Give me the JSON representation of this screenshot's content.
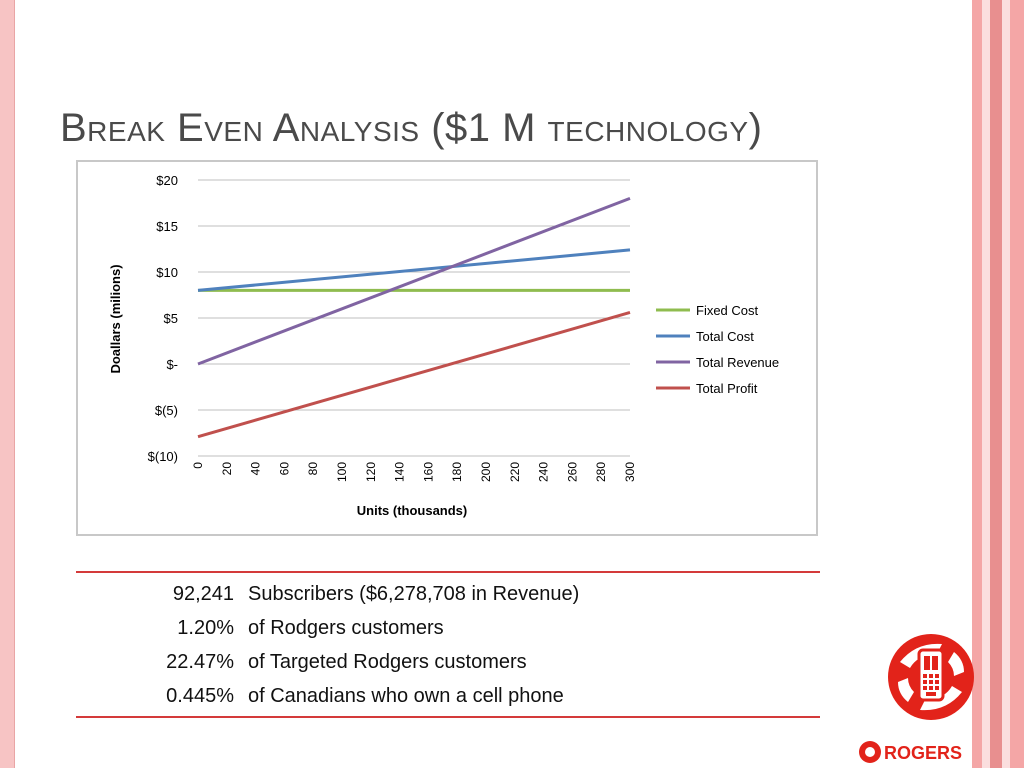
{
  "slide": {
    "title": "Break Even Analysis ($1 M technology)",
    "border_color": "#f7c4c4",
    "stripe_colors": [
      "#f4a6a6",
      "#fbdede",
      "#e88f8f",
      "#fbdede",
      "#f4a6a6"
    ]
  },
  "chart_data": {
    "type": "line",
    "xlabel": "Units (thousands)",
    "ylabel": "Doallars (milions)",
    "x": [
      0,
      20,
      40,
      60,
      80,
      100,
      120,
      140,
      160,
      180,
      200,
      220,
      240,
      260,
      280,
      300
    ],
    "x_tick_labels": [
      "0",
      "20",
      "40",
      "60",
      "80",
      "100",
      "120",
      "140",
      "160",
      "180",
      "200",
      "220",
      "240",
      "260",
      "280",
      "300"
    ],
    "ylim": [
      -10,
      20
    ],
    "y_ticks": [
      20,
      15,
      10,
      5,
      0,
      -5,
      -10
    ],
    "y_tick_labels": [
      "$20",
      "$15",
      "$10",
      "$5",
      "$-",
      "$(5)",
      "$(10)"
    ],
    "grid": "horizontal",
    "legend_position": "right",
    "series": [
      {
        "name": "Fixed Cost",
        "color": "#8fbc4f",
        "points": [
          [
            0,
            8
          ],
          [
            300,
            8
          ]
        ]
      },
      {
        "name": "Total Cost",
        "color": "#4f81bd",
        "points": [
          [
            0,
            8
          ],
          [
            300,
            12.4
          ]
        ]
      },
      {
        "name": "Total Revenue",
        "color": "#8064a2",
        "points": [
          [
            0,
            0
          ],
          [
            300,
            18
          ]
        ]
      },
      {
        "name": "Total Profit",
        "color": "#c0504d",
        "points": [
          [
            0,
            -7.9
          ],
          [
            300,
            5.6
          ]
        ]
      }
    ]
  },
  "stats": [
    {
      "value": "92,241",
      "desc": "Subscribers ($6,278,708 in Revenue)"
    },
    {
      "value": "1.20%",
      "desc": "of Rodgers customers"
    },
    {
      "value": "22.47%",
      "desc": "of Targeted Rodgers customers"
    },
    {
      "value": "0.445%",
      "desc": "of Canadians who own a cell phone"
    }
  ],
  "logo": {
    "wordmark": "ROGERS",
    "brand_color": "#e2231a",
    "icon": "rogers-phone-logo-icon"
  }
}
